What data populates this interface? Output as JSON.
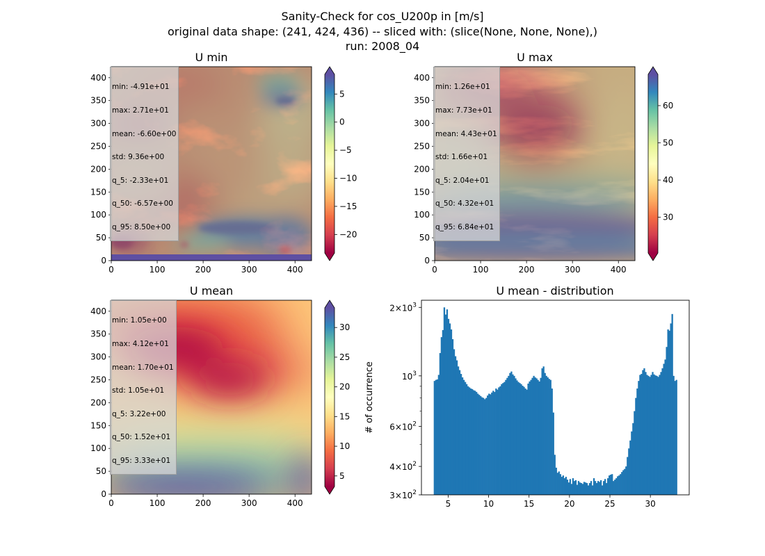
{
  "figure": {
    "title_lines": [
      "Sanity-Check for cos_U200p in [m/s]",
      "original data shape: (241, 424, 436) -- sliced with: (slice(None, None, None),)",
      "run: 2008_04"
    ]
  },
  "chart_data": [
    {
      "type": "heatmap",
      "title": "U min",
      "xticks": [
        "0",
        "100",
        "200",
        "300",
        "400"
      ],
      "yticks": [
        "0",
        "50",
        "100",
        "150",
        "200",
        "250",
        "300",
        "350",
        "400"
      ],
      "xlim": [
        0,
        436
      ],
      "ylim": [
        0,
        424
      ],
      "colorbar": {
        "cmap": "Spectral",
        "range": [
          -23.3,
          8.5
        ],
        "ticks": [
          5,
          0,
          -5,
          -10,
          -15,
          -20
        ],
        "tick_labels": [
          "5",
          "0",
          "−5",
          "−10",
          "−15",
          "−20"
        ]
      },
      "stats": [
        "min: -4.91e+01",
        "max: 2.71e+01",
        "mean: -6.60e+00",
        "std: 9.36e+00",
        "q_5: -2.33e+01",
        "q_50: -6.57e+00",
        "q_95: 8.50e+00"
      ]
    },
    {
      "type": "heatmap",
      "title": "U max",
      "xticks": [
        "0",
        "100",
        "200",
        "300",
        "400"
      ],
      "yticks": [
        "0",
        "50",
        "100",
        "150",
        "200",
        "250",
        "300",
        "350",
        "400"
      ],
      "xlim": [
        0,
        436
      ],
      "ylim": [
        0,
        424
      ],
      "colorbar": {
        "cmap": "Spectral",
        "range": [
          20.4,
          68.4
        ],
        "ticks": [
          60,
          50,
          40,
          30
        ],
        "tick_labels": [
          "60",
          "50",
          "40",
          "30"
        ]
      },
      "stats": [
        "min: 1.26e+01",
        "max: 7.73e+01",
        "mean: 4.43e+01",
        "std: 1.66e+01",
        "q_5: 2.04e+01",
        "q_50: 4.32e+01",
        "q_95: 6.84e+01"
      ]
    },
    {
      "type": "heatmap",
      "title": "U mean",
      "xticks": [
        "0",
        "100",
        "200",
        "300",
        "400"
      ],
      "yticks": [
        "0",
        "50",
        "100",
        "150",
        "200",
        "250",
        "300",
        "350",
        "400"
      ],
      "xlim": [
        0,
        436
      ],
      "ylim": [
        0,
        424
      ],
      "colorbar": {
        "cmap": "Spectral",
        "range": [
          3.22,
          33.3
        ],
        "ticks": [
          30,
          25,
          20,
          15,
          10,
          5
        ],
        "tick_labels": [
          "30",
          "25",
          "20",
          "15",
          "10",
          "5"
        ]
      },
      "stats": [
        "min: 1.05e+00",
        "max: 4.12e+01",
        "mean: 1.70e+01",
        "std: 1.05e+01",
        "q_5: 3.22e+00",
        "q_50: 1.52e+01",
        "q_95: 3.33e+01"
      ]
    },
    {
      "type": "bar",
      "title": "U mean - distribution",
      "xlabel": "",
      "ylabel": "# of occurrence",
      "ylog": true,
      "xlim": [
        1.7,
        34.8
      ],
      "ylim": [
        300,
        2150
      ],
      "xticks": [
        5,
        10,
        15,
        20,
        25,
        30
      ],
      "xtick_labels": [
        "5",
        "10",
        "15",
        "20",
        "25",
        "30"
      ],
      "yticks": [
        300,
        400,
        600,
        1000,
        2000
      ],
      "ytick_bases": [
        "3",
        "4",
        "6",
        "10",
        "2"
      ],
      "ytick_exps": [
        "2",
        "2",
        "2",
        "",
        "3"
      ],
      "ytick_times": [
        "×10",
        "×10",
        "×10",
        "",
        "×10"
      ],
      "bin_range": [
        3.22,
        33.3
      ],
      "bar_color": "#1f77b4",
      "values": [
        950,
        960,
        965,
        1010,
        1260,
        1480,
        1590,
        2000,
        1860,
        1960,
        1780,
        1700,
        1600,
        1450,
        1310,
        1220,
        1170,
        1100,
        1060,
        1020,
        985,
        960,
        940,
        920,
        900,
        890,
        880,
        875,
        865,
        860,
        850,
        835,
        825,
        815,
        805,
        800,
        790,
        800,
        820,
        835,
        830,
        845,
        860,
        850,
        880,
        870,
        890,
        900,
        920,
        930,
        940,
        960,
        980,
        1000,
        1030,
        1045,
        1015,
        1000,
        975,
        955,
        940,
        930,
        920,
        905,
        895,
        880,
        870,
        925,
        945,
        960,
        980,
        1000,
        985,
        975,
        960,
        945,
        980,
        1080,
        1100,
        1030,
        1000,
        985,
        970,
        960,
        880,
        690,
        450,
        395,
        375,
        380,
        370,
        360,
        365,
        355,
        360,
        350,
        340,
        352,
        335,
        355,
        345,
        348,
        332,
        345,
        340,
        338,
        335,
        342,
        340,
        338,
        330,
        338,
        345,
        330,
        355,
        345,
        338,
        345,
        342,
        348,
        330,
        345,
        352,
        338,
        355,
        365,
        368,
        370,
        345,
        350,
        355,
        362,
        365,
        370,
        378,
        385,
        390,
        400,
        440,
        480,
        520,
        570,
        620,
        700,
        800,
        880,
        950,
        1010,
        1020,
        1060,
        1080,
        1040,
        1010,
        1000,
        990,
        1010,
        1040,
        1015,
        1005,
        1000,
        990,
        1010,
        1040,
        1080,
        1130,
        1180,
        1340,
        1600,
        1580,
        1700,
        1870,
        1000,
        950,
        960
      ]
    }
  ]
}
